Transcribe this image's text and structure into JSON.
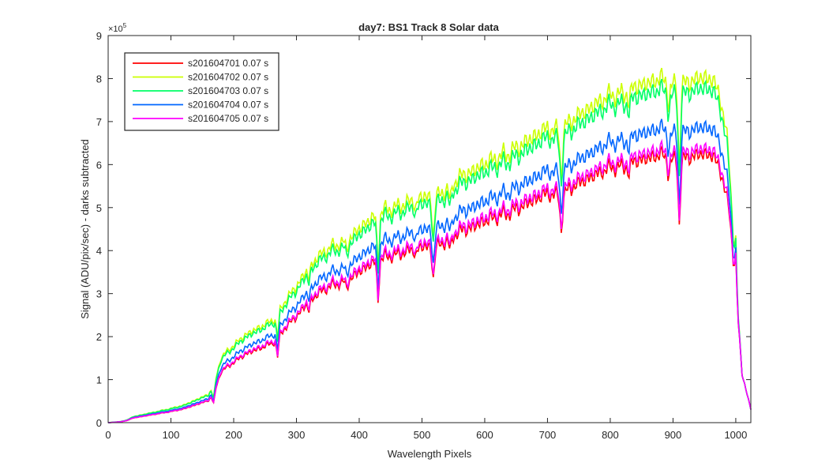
{
  "chart_data": {
    "type": "line",
    "title": "day7: BS1  Track 8 Solar data",
    "xlabel": "Wavelength Pixels",
    "ylabel": "Signal (ADU/pix/sec) - darks subtracted",
    "y_exponent_label": "×10",
    "y_exponent_power": "5",
    "xlim": [
      0,
      1024
    ],
    "ylim": [
      0,
      9
    ],
    "y_units_multiplier": 100000,
    "xticks": [
      0,
      100,
      200,
      300,
      400,
      500,
      600,
      700,
      800,
      900,
      1000
    ],
    "yticks": [
      0,
      1,
      2,
      3,
      4,
      5,
      6,
      7,
      8,
      9
    ],
    "grid": false,
    "legend_position": "top-left",
    "base_profile": {
      "x": [
        0,
        20,
        30,
        40,
        60,
        80,
        100,
        120,
        140,
        160,
        170,
        180,
        200,
        220,
        250,
        265,
        280,
        300,
        320,
        340,
        360,
        380,
        400,
        420,
        440,
        460,
        480,
        500,
        520,
        540,
        560,
        580,
        600,
        620,
        640,
        660,
        680,
        700,
        720,
        740,
        760,
        780,
        800,
        820,
        840,
        860,
        880,
        900,
        920,
        940,
        960,
        975,
        990,
        1000,
        1010,
        1024
      ],
      "y": [
        0.0,
        0.02,
        0.05,
        0.11,
        0.16,
        0.21,
        0.26,
        0.32,
        0.42,
        0.52,
        0.75,
        1.2,
        1.42,
        1.62,
        1.8,
        1.9,
        2.2,
        2.5,
        2.85,
        3.1,
        3.25,
        3.32,
        3.55,
        3.75,
        3.9,
        3.95,
        4.05,
        4.15,
        4.1,
        4.3,
        4.5,
        4.6,
        4.75,
        4.85,
        4.95,
        5.1,
        5.25,
        5.4,
        5.3,
        5.55,
        5.7,
        5.85,
        6.0,
        6.0,
        6.15,
        6.2,
        6.3,
        6.15,
        6.2,
        6.3,
        6.3,
        6.0,
        4.9,
        3.0,
        1.1,
        0.3
      ]
    },
    "dips": [
      {
        "x": 168,
        "depth": 0.25
      },
      {
        "x": 270,
        "depth": 0.45
      },
      {
        "x": 320,
        "depth": 0.2
      },
      {
        "x": 380,
        "depth": 0.15
      },
      {
        "x": 430,
        "depth": 0.9
      },
      {
        "x": 490,
        "depth": 0.2
      },
      {
        "x": 518,
        "depth": 0.7
      },
      {
        "x": 545,
        "depth": 0.35
      },
      {
        "x": 722,
        "depth": 0.8
      },
      {
        "x": 830,
        "depth": 0.25
      },
      {
        "x": 893,
        "depth": 0.35
      },
      {
        "x": 910,
        "depth": 1.5
      }
    ],
    "bump": {
      "x": 1000,
      "height": 1.5
    },
    "series": [
      {
        "name": "s201604701 0.07 s",
        "color": "#ff0000",
        "scale": 1.0
      },
      {
        "name": "s201604702 0.07 s",
        "color": "#ccff00",
        "scale": 1.285
      },
      {
        "name": "s201604703 0.07 s",
        "color": "#00ff66",
        "scale": 1.245
      },
      {
        "name": "s201604704 0.07 s",
        "color": "#0066ff",
        "scale": 1.1
      },
      {
        "name": "s201604705 0.07 s",
        "color": "#ff00ff",
        "scale": 1.02
      }
    ]
  }
}
